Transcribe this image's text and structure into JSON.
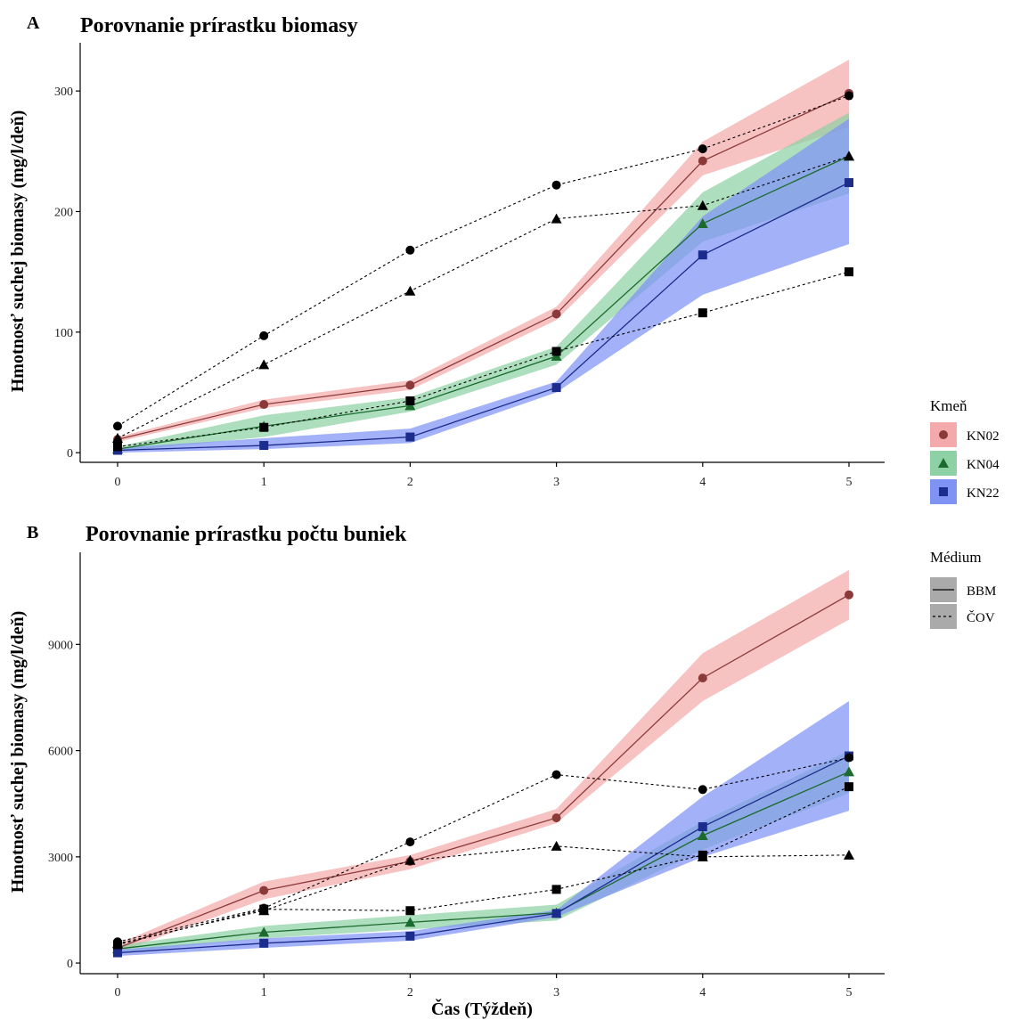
{
  "chart_data": [
    {
      "type": "line",
      "panel": "A",
      "title": "Porovnanie prírastku biomasy",
      "xlabel": "",
      "ylabel": "Hmotnosť suchej biomasy (mg/l/deň)",
      "x": [
        0,
        1,
        2,
        3,
        4,
        5
      ],
      "xticks": [
        0,
        1,
        2,
        3,
        4,
        5
      ],
      "ylim": [
        -8,
        340
      ],
      "yticks": [
        0,
        100,
        200,
        300
      ],
      "grid": false,
      "series": [
        {
          "name": "KN02 / BBM",
          "strain": "KN02",
          "medium": "BBM",
          "values": [
            11,
            40,
            56,
            115,
            242,
            298
          ],
          "ribbon_low": [
            9,
            37,
            52,
            110,
            230,
            270
          ],
          "ribbon_high": [
            13,
            44,
            60,
            121,
            258,
            326
          ]
        },
        {
          "name": "KN04 / BBM",
          "strain": "KN04",
          "medium": "BBM",
          "values": [
            3,
            22,
            39,
            80,
            190,
            246
          ],
          "ribbon_low": [
            1,
            13,
            34,
            73,
            175,
            215
          ],
          "ribbon_high": [
            5,
            31,
            46,
            88,
            216,
            282
          ]
        },
        {
          "name": "KN22 / BBM",
          "strain": "KN22",
          "medium": "BBM",
          "values": [
            2,
            6,
            13,
            54,
            164,
            224
          ],
          "ribbon_low": [
            0,
            3,
            8,
            50,
            131,
            173
          ],
          "ribbon_high": [
            4,
            12,
            20,
            59,
            196,
            277
          ]
        },
        {
          "name": "KN02 / ČOV",
          "strain": "KN02",
          "medium": "ČOV",
          "values": [
            22,
            97,
            168,
            222,
            252,
            296
          ]
        },
        {
          "name": "KN04 / ČOV",
          "strain": "KN04",
          "medium": "ČOV",
          "values": [
            12,
            73,
            134,
            194,
            205,
            246
          ]
        },
        {
          "name": "KN22 / ČOV",
          "strain": "KN22",
          "medium": "ČOV",
          "values": [
            5,
            21,
            43,
            84,
            116,
            150
          ]
        }
      ]
    },
    {
      "type": "line",
      "panel": "B",
      "title": "Porovnanie prírastku počtu buniek",
      "xlabel": "Čas (Týždeň)",
      "ylabel": "Hmotnosť suchej biomasy (mg/l/deň)",
      "x": [
        0,
        1,
        2,
        3,
        4,
        5
      ],
      "xticks": [
        0,
        1,
        2,
        3,
        4,
        5
      ],
      "ylim": [
        -300,
        11600
      ],
      "yticks": [
        0,
        3000,
        6000,
        9000
      ],
      "grid": false,
      "series": [
        {
          "name": "KN02 / BBM",
          "strain": "KN02",
          "medium": "BBM",
          "values": [
            420,
            2050,
            2870,
            4100,
            8050,
            10400
          ],
          "ribbon_low": [
            300,
            1800,
            2650,
            3950,
            7400,
            9700
          ],
          "ribbon_high": [
            540,
            2300,
            3050,
            4350,
            8750,
            11100
          ]
        },
        {
          "name": "KN04 / BBM",
          "strain": "KN04",
          "medium": "BBM",
          "values": [
            400,
            870,
            1150,
            1420,
            3600,
            5400
          ],
          "ribbon_low": [
            300,
            700,
            950,
            1200,
            3200,
            4800
          ],
          "ribbon_high": [
            500,
            1050,
            1350,
            1650,
            4000,
            6000
          ]
        },
        {
          "name": "KN22 / BBM",
          "strain": "KN22",
          "medium": "BBM",
          "values": [
            290,
            560,
            760,
            1400,
            3850,
            5850
          ],
          "ribbon_low": [
            200,
            430,
            630,
            1300,
            3000,
            4300
          ],
          "ribbon_high": [
            380,
            700,
            900,
            1500,
            4700,
            7400
          ]
        },
        {
          "name": "KN02 / ČOV",
          "strain": "KN02",
          "medium": "ČOV",
          "values": [
            600,
            1550,
            3420,
            5320,
            4900,
            5800
          ]
        },
        {
          "name": "KN04 / ČOV",
          "strain": "KN04",
          "medium": "ČOV",
          "values": [
            550,
            1480,
            2900,
            3300,
            3000,
            3050
          ]
        },
        {
          "name": "KN22 / ČOV",
          "strain": "KN22",
          "medium": "ČOV",
          "values": [
            520,
            1520,
            1480,
            2080,
            3050,
            4980
          ]
        }
      ]
    }
  ],
  "legend": {
    "placement": "right",
    "strain": {
      "title": "Kmeň",
      "items": [
        {
          "label": "KN02",
          "marker": "circle",
          "fill": "#F4AAAA",
          "color": "#8B3A3A"
        },
        {
          "label": "KN04",
          "marker": "triangle",
          "fill": "#8ED1A4",
          "color": "#1B6B2E"
        },
        {
          "label": "KN22",
          "marker": "square",
          "fill": "#7F93F5",
          "color": "#1C2C8C"
        }
      ]
    },
    "medium": {
      "title": "Médium",
      "items": [
        {
          "label": "BBM",
          "dash": "solid"
        },
        {
          "label": "ČOV",
          "dash": "dotted"
        }
      ]
    }
  },
  "colors": {
    "KN02": {
      "ribbon": "#F4AAAA",
      "line": "#8B3A3A",
      "marker": "#8B3A3A"
    },
    "KN04": {
      "ribbon": "#8ED1A4",
      "line": "#1B6B2E",
      "marker": "#1B6B2E"
    },
    "KN22": {
      "ribbon": "#7F93F5",
      "line": "#1C2C8C",
      "marker": "#1C2C8C"
    },
    "cov_line": "#000000",
    "cov_marker": "#000000"
  }
}
